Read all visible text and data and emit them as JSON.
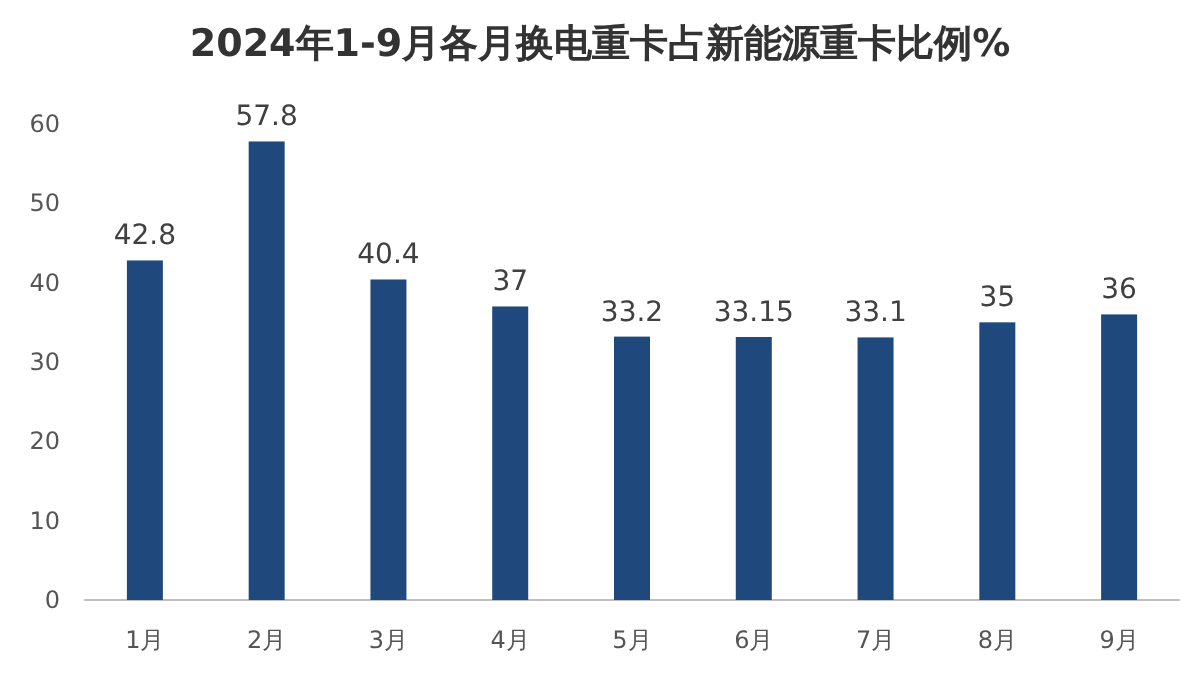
{
  "chart_data": {
    "type": "bar",
    "title": "2024年1-9月各月换电重卡占新能源重卡比例%",
    "categories": [
      "1月",
      "2月",
      "3月",
      "4月",
      "5月",
      "6月",
      "7月",
      "8月",
      "9月"
    ],
    "values": [
      42.8,
      57.8,
      40.4,
      37,
      33.2,
      33.15,
      33.1,
      35,
      36
    ],
    "color": "#1f497d",
    "ylim": [
      0,
      60
    ],
    "yticks": [
      0,
      10,
      20,
      30,
      40,
      50,
      60
    ],
    "data_labels": true,
    "grid": false
  }
}
